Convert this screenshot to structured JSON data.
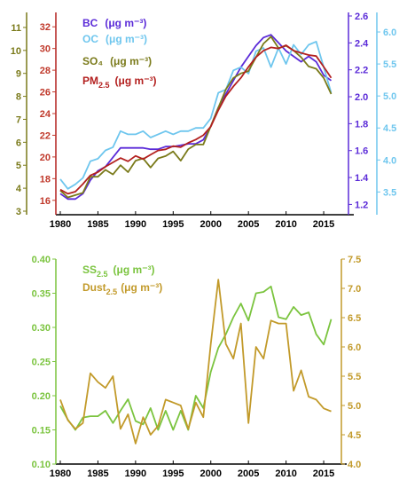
{
  "chart_data": [
    {
      "type": "line",
      "title": "",
      "x": [
        1980,
        1981,
        1982,
        1983,
        1984,
        1985,
        1986,
        1987,
        1988,
        1989,
        1990,
        1991,
        1992,
        1993,
        1994,
        1995,
        1996,
        1997,
        1998,
        1999,
        2000,
        2001,
        2002,
        2003,
        2004,
        2005,
        2006,
        2007,
        2008,
        2009,
        2010,
        2011,
        2012,
        2013,
        2014,
        2015,
        2016
      ],
      "xlim": [
        1980,
        2019
      ],
      "xticks": [
        "1980",
        "1985",
        "1990",
        "1995",
        "2000",
        "2005",
        "2010",
        "2015"
      ],
      "axes": {
        "bc_axis": {
          "color": "#5b2bd8",
          "ylim": [
            1.15,
            2.6
          ],
          "ticks": [
            "1.2",
            "1.4",
            "1.6",
            "1.8",
            "2.0",
            "2.2",
            "2.4",
            "2.6"
          ]
        },
        "oc_axis": {
          "color": "#6ec6ee",
          "ylim": [
            3.2,
            6.25
          ],
          "ticks": [
            "3.5",
            "4.0",
            "4.5",
            "5.0",
            "5.5",
            "6.0"
          ]
        },
        "so4_axis": {
          "color": "#7a7a1a",
          "ylim": [
            3,
            11.5
          ],
          "ticks": [
            "3",
            "4",
            "5",
            "6",
            "7",
            "8",
            "9",
            "10",
            "11"
          ]
        },
        "pm_axis": {
          "color": "#c0392b",
          "ylim": [
            15,
            33
          ],
          "ticks": [
            "16",
            "18",
            "20",
            "22",
            "24",
            "26",
            "28",
            "30",
            "32"
          ]
        }
      },
      "series": [
        {
          "name": "BC",
          "unit": "(μg m⁻³)",
          "axis": "bc_axis",
          "color": "#5b2bd8",
          "values": [
            1.28,
            1.24,
            1.24,
            1.28,
            1.38,
            1.45,
            1.48,
            1.55,
            1.62,
            1.62,
            1.62,
            1.62,
            1.61,
            1.61,
            1.63,
            1.63,
            1.64,
            1.65,
            1.65,
            1.68,
            1.78,
            1.92,
            2.02,
            2.12,
            2.22,
            2.3,
            2.38,
            2.44,
            2.46,
            2.4,
            2.34,
            2.3,
            2.26,
            2.3,
            2.26,
            2.16,
            2.12
          ]
        },
        {
          "name": "OC",
          "unit": "(μg m⁻³)",
          "axis": "oc_axis",
          "color": "#6ec6ee",
          "values": [
            3.7,
            3.55,
            3.62,
            3.72,
            3.98,
            4.02,
            4.15,
            4.2,
            4.45,
            4.4,
            4.4,
            4.45,
            4.35,
            4.4,
            4.45,
            4.4,
            4.45,
            4.45,
            4.5,
            4.5,
            4.65,
            5.05,
            5.1,
            5.4,
            5.45,
            5.35,
            5.7,
            5.75,
            5.45,
            5.75,
            5.5,
            5.8,
            5.65,
            5.8,
            5.85,
            5.45,
            5.05
          ]
        },
        {
          "name": "SO₄",
          "unit": "(μg m⁻³)",
          "axis": "so4_axis",
          "color": "#7a7a1a",
          "values": [
            3.9,
            3.6,
            3.7,
            3.8,
            4.5,
            4.5,
            4.8,
            4.6,
            5.0,
            4.7,
            5.2,
            5.3,
            4.9,
            5.3,
            5.4,
            5.6,
            5.2,
            5.7,
            5.9,
            5.9,
            6.7,
            7.5,
            8.3,
            8.8,
            9.0,
            9.1,
            9.7,
            10.3,
            10.6,
            10.1,
            10.2,
            10.0,
            9.7,
            9.3,
            9.2,
            8.8,
            8.1
          ]
        },
        {
          "name": "PM",
          "sub": "2.5",
          "unit": "(μg m⁻³)",
          "axis": "pm_axis",
          "color": "#b3201f",
          "values": [
            17.0,
            16.6,
            16.8,
            17.5,
            18.3,
            18.6,
            19.1,
            19.5,
            19.9,
            19.6,
            20.1,
            19.8,
            20.2,
            20.6,
            20.7,
            21.0,
            20.9,
            21.3,
            21.6,
            22.0,
            22.8,
            24.3,
            25.6,
            26.5,
            27.3,
            28.3,
            29.2,
            29.8,
            30.1,
            30.0,
            30.3,
            29.8,
            29.6,
            29.4,
            29.3,
            28.3,
            27.3
          ]
        }
      ]
    },
    {
      "type": "line",
      "title": "",
      "x": [
        1980,
        1981,
        1982,
        1983,
        1984,
        1985,
        1986,
        1987,
        1988,
        1989,
        1990,
        1991,
        1992,
        1993,
        1994,
        1995,
        1996,
        1997,
        1998,
        1999,
        2000,
        2001,
        2002,
        2003,
        2004,
        2005,
        2006,
        2007,
        2008,
        2009,
        2010,
        2011,
        2012,
        2013,
        2014,
        2015,
        2016
      ],
      "xlim": [
        1980,
        2019
      ],
      "xticks": [
        "1980",
        "1985",
        "1990",
        "1995",
        "2000",
        "2005",
        "2010",
        "2015"
      ],
      "axes": {
        "ss_axis": {
          "color": "#7bc43f",
          "ylim": [
            0.1,
            0.4
          ],
          "ticks": [
            "0.10",
            "0.15",
            "0.20",
            "0.25",
            "0.30",
            "0.35",
            "0.40"
          ]
        },
        "dust_axis": {
          "color": "#c29a2a",
          "ylim": [
            4.0,
            7.5
          ],
          "ticks": [
            "4.0",
            "4.5",
            "5.0",
            "5.5",
            "6.0",
            "6.5",
            "7.0",
            "7.5"
          ]
        }
      },
      "series": [
        {
          "name": "SS",
          "sub": "2.5",
          "unit": "(μg m⁻³)",
          "axis": "ss_axis",
          "color": "#7bc43f",
          "values": [
            0.185,
            0.165,
            0.15,
            0.168,
            0.17,
            0.17,
            0.178,
            0.16,
            0.178,
            0.195,
            0.163,
            0.158,
            0.182,
            0.15,
            0.178,
            0.15,
            0.178,
            0.15,
            0.2,
            0.182,
            0.235,
            0.27,
            0.29,
            0.315,
            0.335,
            0.31,
            0.35,
            0.352,
            0.36,
            0.315,
            0.312,
            0.33,
            0.318,
            0.322,
            0.29,
            0.275,
            0.312
          ]
        },
        {
          "name": "Dust",
          "sub": "2.5",
          "unit": "(μg m⁻³)",
          "axis": "dust_axis",
          "color": "#c29a2a",
          "values": [
            5.1,
            4.75,
            4.6,
            4.7,
            5.55,
            5.4,
            5.3,
            5.5,
            4.6,
            4.85,
            4.35,
            4.8,
            4.5,
            4.65,
            5.1,
            5.05,
            5.0,
            4.6,
            5.05,
            4.8,
            6.05,
            7.15,
            6.05,
            5.8,
            6.4,
            4.7,
            6.0,
            5.8,
            6.45,
            6.4,
            6.4,
            5.25,
            5.6,
            5.15,
            5.1,
            4.95,
            4.9
          ]
        }
      ]
    }
  ]
}
